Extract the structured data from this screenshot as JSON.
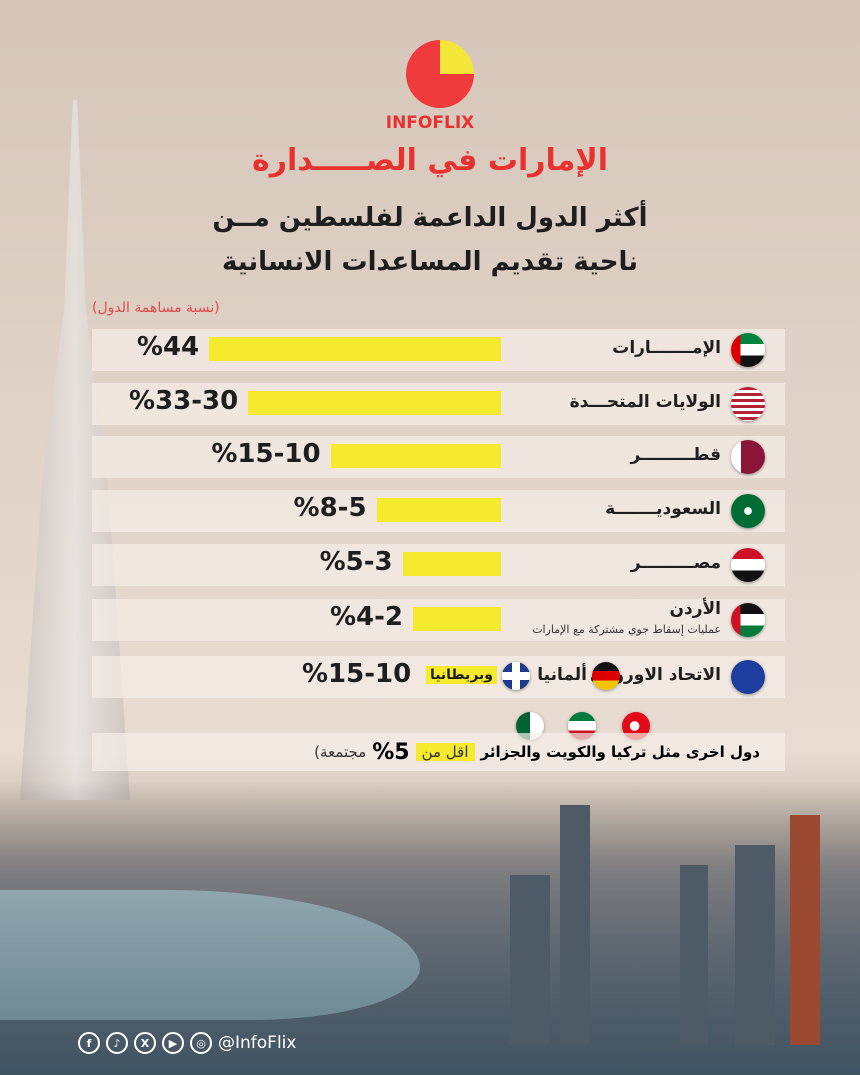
{
  "brand": "INFOFLIX",
  "title": "الإمارات في الصـــــدارة",
  "subtitle_line1": "أكثر الدول الداعمة لفلسطين مــن",
  "subtitle_line2": "ناحية تقديم المساعدات الانسانية",
  "note": "(نسبة مساهمة الدول)",
  "chart_data": {
    "type": "bar",
    "orientation": "horizontal",
    "scale": "sqrt",
    "categories": [
      "الإمـــــــارات",
      "الولايات المتحـــدة",
      "قطـــــــــر",
      "السعوديـــــــة",
      "مصـــــــــر",
      "الأردن"
    ],
    "values": [
      44,
      33,
      15,
      8,
      5,
      4
    ],
    "labels": [
      "%44",
      "%33-30",
      "%15-10",
      "%8-5",
      "%5-3",
      "%4-2"
    ],
    "flags": [
      "uae",
      "usa",
      "qatar",
      "saudi",
      "egypt",
      "jordan"
    ],
    "bar_color": "#f5ea2e",
    "annotations": {
      "jordan": "عمليات إسقاط جوي مشتركة مع الإمارات"
    }
  },
  "europe": {
    "eu": "الاتحاد الاوروبي",
    "germany": "ألمانيا",
    "uk": "وبريطانيا",
    "value": "%15-10"
  },
  "others": {
    "text": "دول اخرى مثل تركيا والكويت والجزائر",
    "less": "اقل من",
    "pct": "%5",
    "suffix": "مجتمعة)"
  },
  "social": {
    "handle": "@InfoFlix",
    "icons": [
      "facebook-icon",
      "tiktok-icon",
      "x-icon",
      "youtube-icon",
      "instagram-icon"
    ]
  }
}
